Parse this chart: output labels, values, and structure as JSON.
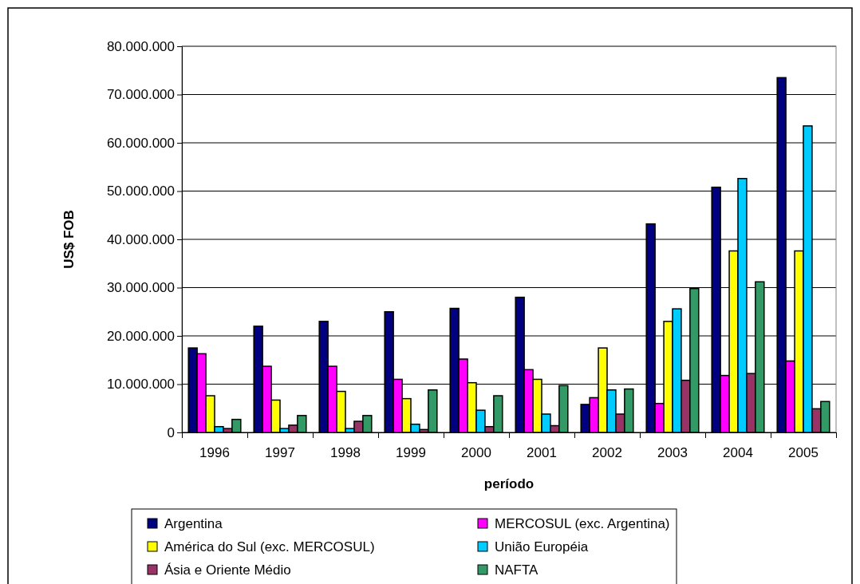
{
  "chart_data": {
    "type": "bar",
    "xlabel": "período",
    "ylabel": "US$ FOB",
    "categories": [
      "1996",
      "1997",
      "1998",
      "1999",
      "2000",
      "2001",
      "2002",
      "2003",
      "2004",
      "2005"
    ],
    "series": [
      {
        "name": "Argentina",
        "color": "#000080",
        "values": [
          17500000,
          22000000,
          23000000,
          25000000,
          25700000,
          28000000,
          5800000,
          43200000,
          50800000,
          73500000
        ]
      },
      {
        "name": "MERCOSUL (exc. Argentina)",
        "color": "#ff00ff",
        "values": [
          16300000,
          13700000,
          13700000,
          11000000,
          15200000,
          13000000,
          7200000,
          6000000,
          11800000,
          14800000
        ]
      },
      {
        "name": "América do Sul (exc. MERCOSUL)",
        "color": "#ffff00",
        "values": [
          7600000,
          6700000,
          8500000,
          7000000,
          10300000,
          11000000,
          17500000,
          23000000,
          37600000,
          37600000
        ]
      },
      {
        "name": "União Européia",
        "color": "#00ccff",
        "values": [
          1200000,
          800000,
          800000,
          1700000,
          4600000,
          3800000,
          8800000,
          25600000,
          52600000,
          63500000
        ]
      },
      {
        "name": "Ásia e Oriente Médio",
        "color": "#993366",
        "values": [
          800000,
          1500000,
          2300000,
          600000,
          1200000,
          1400000,
          3800000,
          10800000,
          12200000,
          4900000
        ]
      },
      {
        "name": "NAFTA",
        "color": "#339966",
        "values": [
          2700000,
          3500000,
          3500000,
          8800000,
          7600000,
          9700000,
          9000000,
          29800000,
          31200000,
          6400000
        ]
      }
    ],
    "ylim": [
      0,
      80000000
    ],
    "yticks": [
      {
        "value": 0,
        "label": "0"
      },
      {
        "value": 10000000,
        "label": "10.000.000"
      },
      {
        "value": 20000000,
        "label": "20.000.000"
      },
      {
        "value": 30000000,
        "label": "30.000.000"
      },
      {
        "value": 40000000,
        "label": "40.000.000"
      },
      {
        "value": 50000000,
        "label": "50.000.000"
      },
      {
        "value": 60000000,
        "label": "60.000.000"
      },
      {
        "value": 70000000,
        "label": "70.000.000"
      },
      {
        "value": 80000000,
        "label": "80.000.000"
      }
    ],
    "grid": "y",
    "legend": "bottom"
  }
}
